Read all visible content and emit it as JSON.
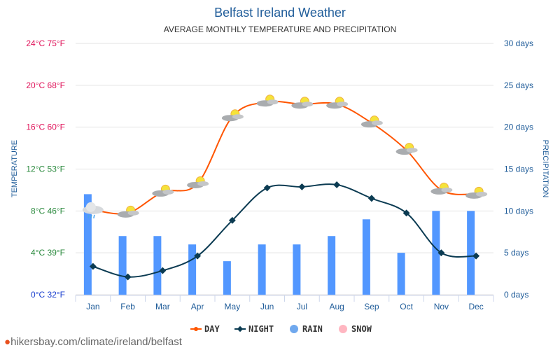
{
  "chart_data": {
    "type": "line",
    "title": "Belfast Ireland Weather",
    "subtitle": "AVERAGE MONTHLY TEMPERATURE AND PRECIPITATION",
    "ylabel_left": "TEMPERATURE",
    "ylabel_right": "PRECIPITATION",
    "categories": [
      "Jan",
      "Feb",
      "Mar",
      "Apr",
      "May",
      "Jun",
      "Jul",
      "Aug",
      "Sep",
      "Oct",
      "Nov",
      "Dec"
    ],
    "left_ticks": [
      {
        "value": 0,
        "label": "0°C 32°F",
        "color": "#1a3fcf"
      },
      {
        "value": 4,
        "label": "4°C 39°F",
        "color": "#2b8a3e"
      },
      {
        "value": 8,
        "label": "8°C 46°F",
        "color": "#2b8a3e"
      },
      {
        "value": 12,
        "label": "12°C 53°F",
        "color": "#2b8a3e"
      },
      {
        "value": 16,
        "label": "16°C 60°F",
        "color": "#e0155b"
      },
      {
        "value": 20,
        "label": "20°C 68°F",
        "color": "#e0155b"
      },
      {
        "value": 24,
        "label": "24°C 75°F",
        "color": "#e0155b"
      }
    ],
    "ylim_left": [
      0,
      24
    ],
    "right_ticks": [
      {
        "value": 0,
        "label": "0 days"
      },
      {
        "value": 5,
        "label": "5 days"
      },
      {
        "value": 10,
        "label": "10 days"
      },
      {
        "value": 15,
        "label": "15 days"
      },
      {
        "value": 20,
        "label": "20 days"
      },
      {
        "value": 25,
        "label": "25 days"
      },
      {
        "value": 30,
        "label": "30 days"
      }
    ],
    "ylim_right": [
      0,
      30
    ],
    "grid": true,
    "legend_placement": "bottom",
    "series": [
      {
        "name": "DAY",
        "type": "line",
        "axis": "left",
        "color": "#ff5500",
        "values": [
          8.1,
          7.8,
          9.8,
          10.6,
          17.0,
          18.4,
          18.2,
          18.2,
          16.4,
          13.8,
          10.0,
          9.6
        ]
      },
      {
        "name": "NIGHT",
        "type": "line",
        "axis": "left",
        "color": "#0b3b52",
        "values": [
          2.7,
          1.7,
          2.3,
          3.7,
          7.1,
          10.2,
          10.3,
          10.5,
          9.2,
          7.8,
          4.0,
          3.7
        ]
      },
      {
        "name": "RAIN",
        "type": "bar",
        "axis": "right",
        "color": "#5297ff",
        "values": [
          12,
          7,
          7,
          6,
          4,
          6,
          6,
          7,
          9,
          5,
          10,
          10
        ]
      },
      {
        "name": "SNOW",
        "type": "bar",
        "axis": "right",
        "color": "#ffb6c1",
        "values": [
          0,
          0,
          0,
          0,
          0,
          0,
          0,
          0,
          0,
          0,
          0,
          0
        ]
      }
    ],
    "weather_icons": [
      "rain-cloud",
      "partly-cloudy",
      "partly-cloudy",
      "partly-cloudy",
      "partly-cloudy",
      "partly-cloudy",
      "partly-cloudy",
      "partly-cloudy",
      "partly-cloudy",
      "partly-cloudy",
      "partly-cloudy",
      "partly-cloudy"
    ]
  },
  "footer": {
    "text": "hikersbay.com/climate/ireland/belfast",
    "icon": "map-pin-icon"
  }
}
